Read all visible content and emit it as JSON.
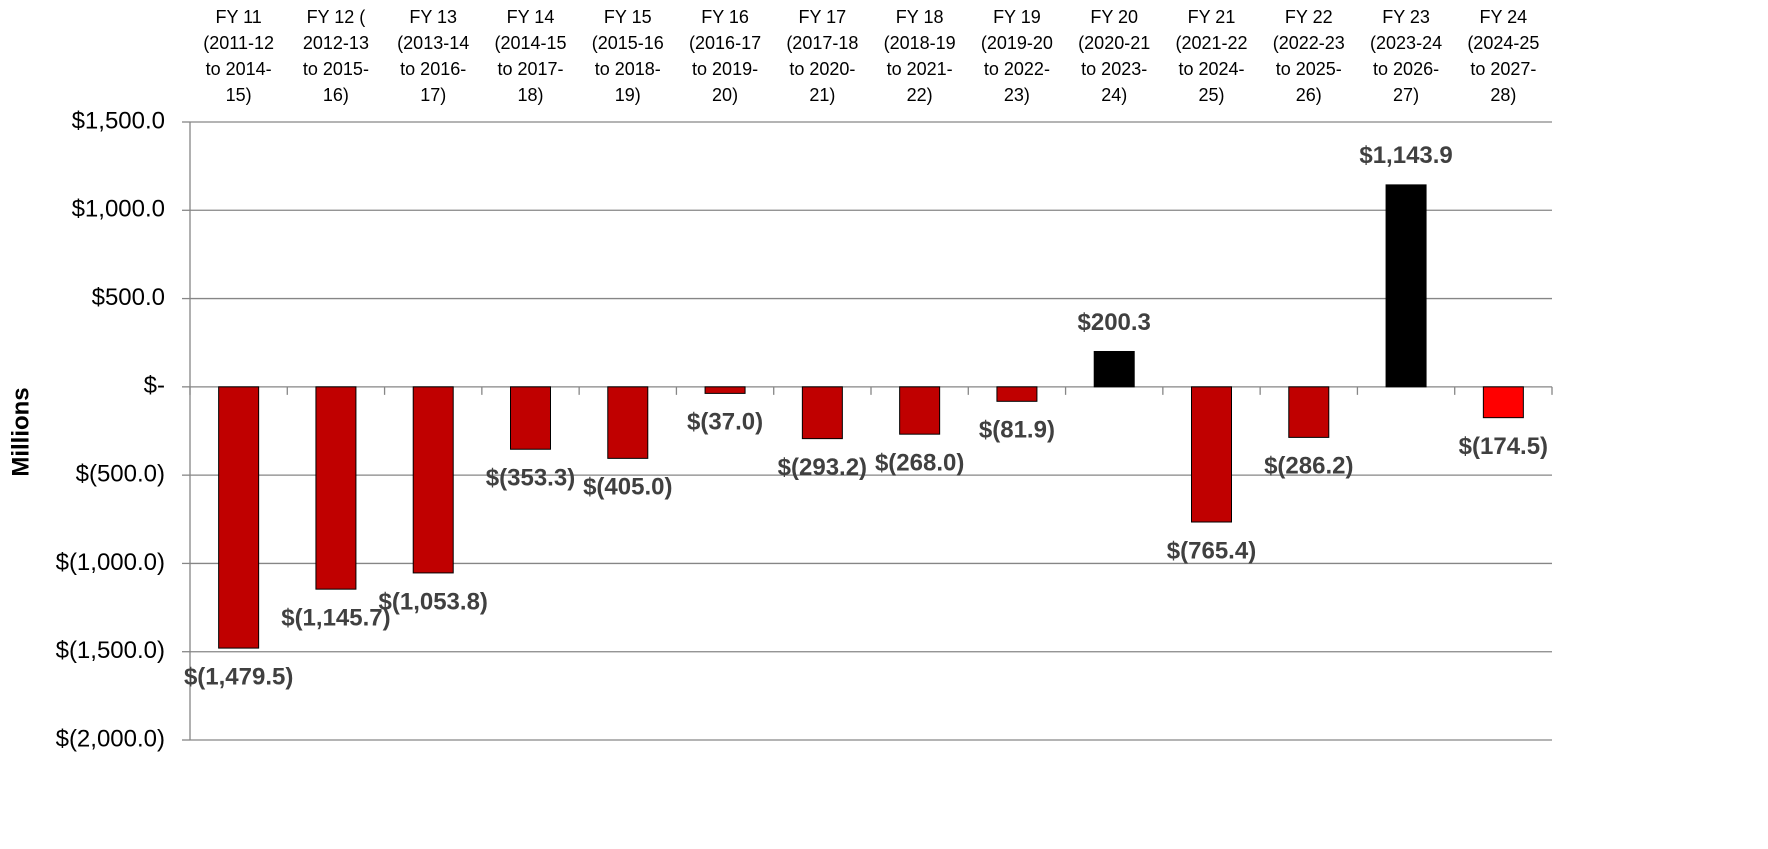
{
  "chart_data": {
    "type": "bar",
    "y_label": "Millions",
    "categories": [
      "FY 11 (2011-12 to 2014-15)",
      "FY 12 ( 2012-13 to 2015-16)",
      "FY 13 (2013-14 to 2016-17)",
      "FY 14 (2014-15 to 2017-18)",
      "FY 15 (2015-16 to 2018-19)",
      "FY 16 (2016-17 to 2019-20)",
      "FY 17 (2017-18 to 2020-21)",
      "FY 18 (2018-19 to 2021-22)",
      "FY 19 (2019-20 to 2022-23)",
      "FY 20 (2020-21 to 2023-24)",
      "FY 21 (2021-22 to 2024-25)",
      "FY 22 (2022-23 to 2025-26)",
      "FY 23 (2023-24 to 2026-27)",
      "FY 24 (2024-25 to 2027-28)"
    ],
    "values": [
      -1479.5,
      -1145.7,
      -1053.8,
      -353.3,
      -405.0,
      -37.0,
      -293.2,
      -268.0,
      -81.9,
      200.3,
      -765.4,
      -286.2,
      1143.9,
      -174.5
    ],
    "value_labels": [
      "$(1,479.5)",
      "$(1,145.7)",
      "$(1,053.8)",
      "$(353.3)",
      "$(405.0)",
      "$(37.0)",
      "$(293.2)",
      "$(268.0)",
      "$(81.9)",
      "$200.3",
      "$(765.4)",
      "$(286.2)",
      "$1,143.9",
      "$(174.5)"
    ],
    "colors": [
      "#c00000",
      "#c00000",
      "#c00000",
      "#c00000",
      "#c00000",
      "#c00000",
      "#c00000",
      "#c00000",
      "#c00000",
      "#000000",
      "#c00000",
      "#c00000",
      "#000000",
      "#ff0000"
    ],
    "ylim": [
      -2000,
      1500
    ],
    "yticks": [
      {
        "value": -2000,
        "label": "$(2,000.0)"
      },
      {
        "value": -1500,
        "label": "$(1,500.0)"
      },
      {
        "value": -1000,
        "label": "$(1,000.0)"
      },
      {
        "value": -500,
        "label": "$(500.0)"
      },
      {
        "value": 0,
        "label": "$-"
      },
      {
        "value": 500,
        "label": "$500.0"
      },
      {
        "value": 1000,
        "label": "$1,000.0"
      },
      {
        "value": 1500,
        "label": "$1,500.0"
      }
    ],
    "grid": true
  }
}
